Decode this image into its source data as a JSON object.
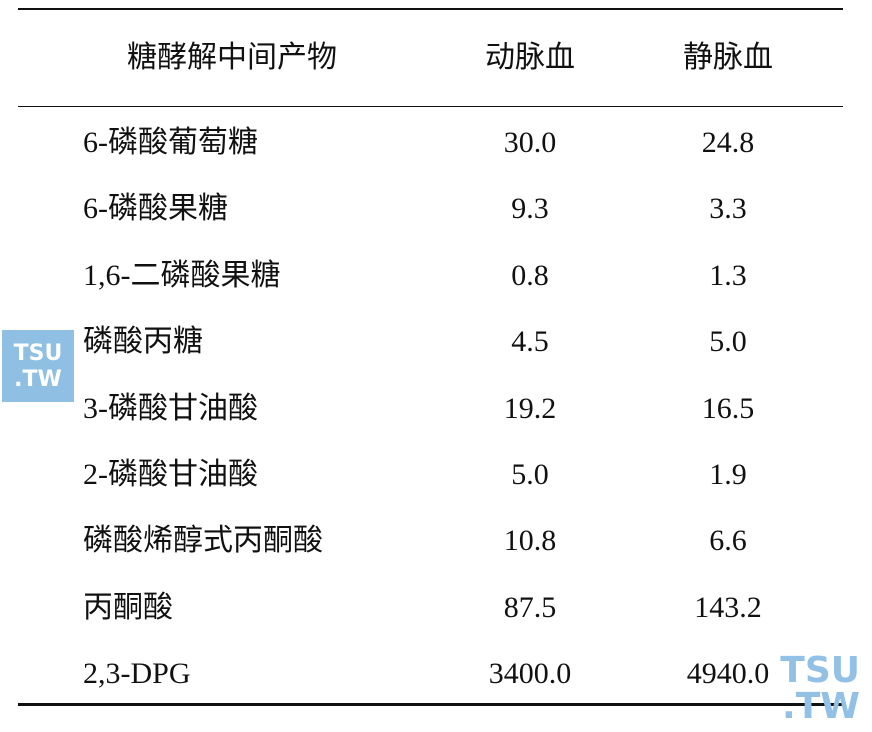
{
  "table": {
    "header": [
      "糖酵解中间产物",
      "动脉血",
      "静脉血"
    ],
    "rows": [
      [
        "6-磷酸葡萄糖",
        "30.0",
        "24.8"
      ],
      [
        "6-磷酸果糖",
        "9.3",
        "3.3"
      ],
      [
        "1,6-二磷酸果糖",
        "0.8",
        "1.3"
      ],
      [
        "磷酸丙糖",
        "4.5",
        "5.0"
      ],
      [
        "3-磷酸甘油酸",
        "19.2",
        "16.5"
      ],
      [
        "2-磷酸甘油酸",
        "5.0",
        "1.9"
      ],
      [
        "磷酸烯醇式丙酮酸",
        "10.8",
        "6.6"
      ],
      [
        "丙酮酸",
        "87.5",
        "143.2"
      ],
      [
        "2,3-DPG",
        "3400.0",
        "4940.0"
      ]
    ]
  },
  "watermarks": [
    [
      "TSU",
      ".TW"
    ],
    [
      "TSU",
      ".TW"
    ]
  ]
}
